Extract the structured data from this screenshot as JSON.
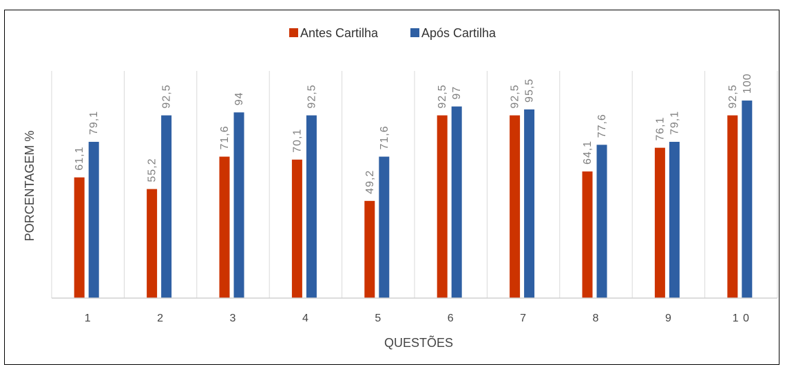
{
  "chart_data": {
    "type": "bar",
    "categories": [
      "1",
      "2",
      "3",
      "4",
      "5",
      "6",
      "7",
      "8",
      "9",
      "10"
    ],
    "series": [
      {
        "name": "Antes Cartilha",
        "color": "#cc3300",
        "values": [
          61.1,
          55.2,
          71.6,
          70.1,
          49.2,
          92.5,
          92.5,
          64.1,
          76.1,
          92.5
        ],
        "labels": [
          "61,1",
          "55,2",
          "71,6",
          "70,1",
          "49,2",
          "92,5",
          "92,5",
          "64,1",
          "76,1",
          "92,5"
        ]
      },
      {
        "name": "Após Cartilha",
        "color": "#2e5fa3",
        "values": [
          79.1,
          92.5,
          94,
          92.5,
          71.6,
          97,
          95.5,
          77.6,
          79.1,
          100
        ],
        "labels": [
          "79,1",
          "92,5",
          "94",
          "92,5",
          "71,6",
          "97",
          "95,5",
          "77,6",
          "79,1",
          "100"
        ]
      }
    ],
    "tick_labels": [
      "1",
      "2",
      "3",
      "4",
      "5",
      "6",
      "7",
      "8",
      "9",
      "1 0"
    ],
    "xlabel": "QUESTÕES",
    "ylabel": "PORCENTAGEM %",
    "ylim": [
      0,
      115
    ],
    "grid": "vertical",
    "legend": "top-center"
  }
}
